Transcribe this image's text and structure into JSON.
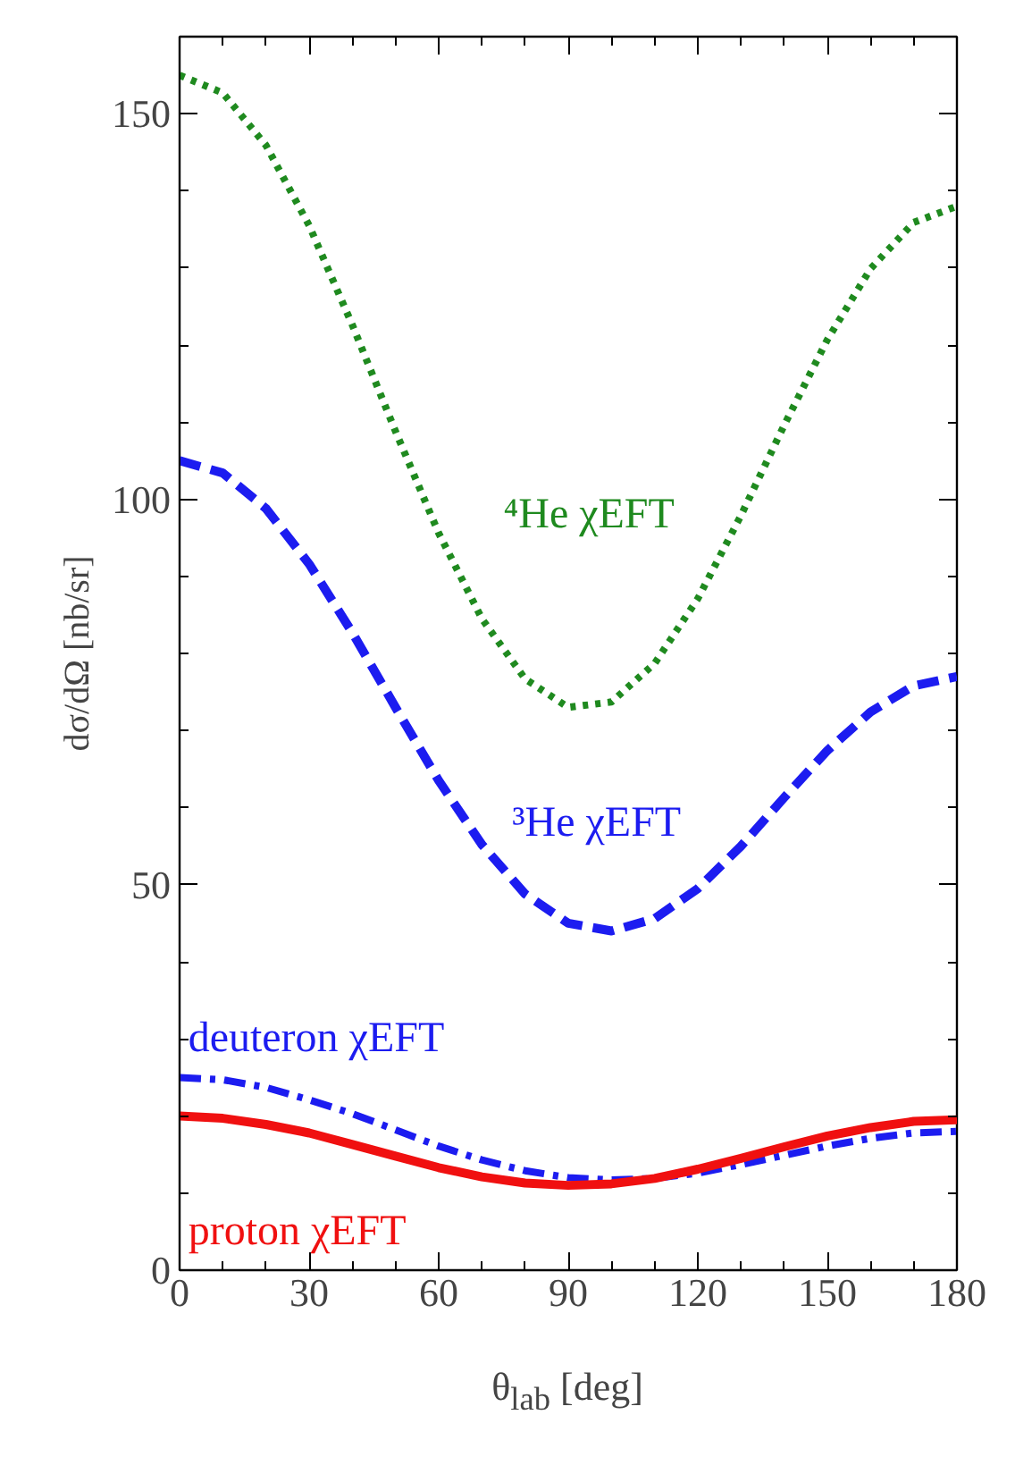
{
  "chart_data": {
    "type": "line",
    "xlabel": "θ$_{lab}$ [deg]",
    "ylabel": "dσ/dΩ [nb/sr]",
    "x": [
      0,
      10,
      20,
      30,
      40,
      50,
      60,
      70,
      80,
      90,
      100,
      110,
      120,
      130,
      140,
      150,
      160,
      170,
      180
    ],
    "xlim": [
      0,
      180
    ],
    "xticks": [
      0,
      30,
      60,
      90,
      120,
      150,
      180
    ],
    "ylim": [
      0,
      160
    ],
    "yticks": [
      0,
      50,
      100,
      150
    ],
    "grid": false,
    "series": [
      {
        "name": "⁴He χEFT",
        "color": "#1f8a1f",
        "line_style": "dotted",
        "values": [
          155,
          152.7,
          145.9,
          135.5,
          122.6,
          108.8,
          95.6,
          84.5,
          76.7,
          73,
          73.7,
          78.7,
          87.1,
          97.9,
          109.6,
          120.7,
          129.9,
          135.9,
          138
        ]
      },
      {
        "name": "³He χEFT",
        "color": "#1c1cf0",
        "line_style": "dashed",
        "values": [
          105,
          103.4,
          98.8,
          91.6,
          82.7,
          73,
          63.5,
          55.2,
          48.8,
          45,
          44,
          45.6,
          49.5,
          55,
          61.3,
          67.4,
          72.4,
          75.8,
          77
        ]
      },
      {
        "name": "deuteron χEFT",
        "color": "#1c1cf0",
        "line_style": "dashdot",
        "values": [
          25,
          24.7,
          23.7,
          22.1,
          20.3,
          18.2,
          16.1,
          14.3,
          12.9,
          12,
          11.7,
          11.9,
          12.6,
          13.7,
          14.9,
          16.1,
          17.1,
          17.8,
          18
        ]
      },
      {
        "name": "proton χEFT",
        "color": "#f01010",
        "line_style": "solid",
        "values": [
          20,
          19.7,
          18.9,
          17.8,
          16.3,
          14.8,
          13.3,
          12.1,
          11.3,
          11,
          11.2,
          11.9,
          13.1,
          14.5,
          16,
          17.4,
          18.5,
          19.3,
          19.5
        ]
      }
    ]
  }
}
